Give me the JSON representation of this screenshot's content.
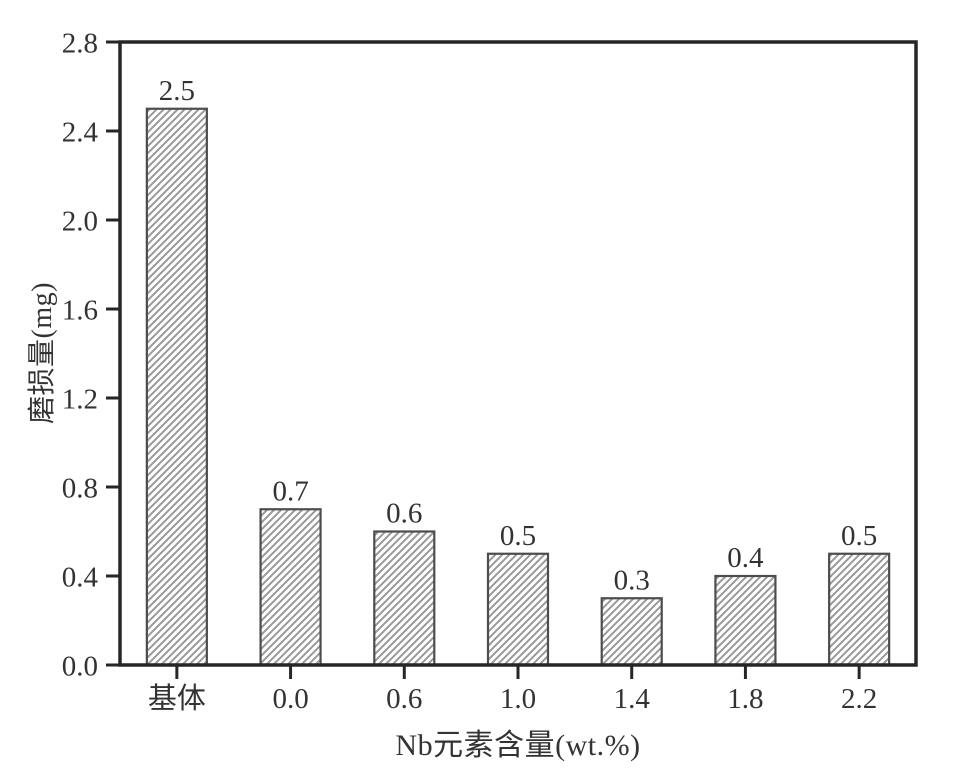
{
  "chart_data": {
    "type": "bar",
    "title": "",
    "xlabel": "Nb元素含量(wt.%)",
    "ylabel": "磨损量(mg)",
    "categories": [
      "基体",
      "0.0",
      "0.6",
      "1.0",
      "1.4",
      "1.8",
      "2.2"
    ],
    "values": [
      2.5,
      0.7,
      0.6,
      0.5,
      0.3,
      0.4,
      0.5
    ],
    "bar_labels": [
      "2.5",
      "0.7",
      "0.6",
      "0.5",
      "0.3",
      "0.4",
      "0.5"
    ],
    "ylim": [
      0.0,
      2.8
    ],
    "ytick_step": 0.4,
    "yticks": [
      "0.0",
      "0.4",
      "0.8",
      "1.2",
      "1.6",
      "2.0",
      "2.4",
      "2.8"
    ],
    "grid": false,
    "legend": "none",
    "bar_fill_style": "diagonal-hatch-forward",
    "colors": {
      "axis": "#262626",
      "text": "#333333",
      "hatch": "#999999",
      "bar_edge": "#4d4d4d",
      "background": "#ffffff"
    }
  }
}
